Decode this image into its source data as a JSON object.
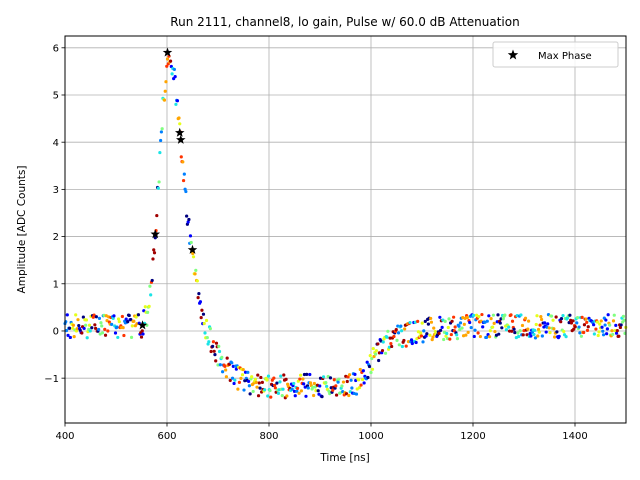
{
  "chart_data": {
    "type": "scatter",
    "title": "Run 2111, channel8, lo gain, Pulse w/ 60.0 dB Attenuation",
    "xlabel": "Time [ns]",
    "ylabel": "Amplitude [ADC Counts]",
    "xlim": [
      400,
      1500
    ],
    "ylim": [
      -1.95,
      6.25
    ],
    "xticks": [
      400,
      600,
      800,
      1000,
      1200,
      1400
    ],
    "yticks": [
      -1,
      0,
      1,
      2,
      3,
      4,
      5,
      6
    ],
    "grid": true,
    "legend": {
      "entries": [
        "Max Phase"
      ],
      "placement": "top-right"
    },
    "color_scale": [
      "#00007f",
      "#0000ff",
      "#0080ff",
      "#1ae4e6",
      "#80ff80",
      "#e6ff1a",
      "#ffa500",
      "#ff3300",
      "#a00000"
    ],
    "pulse_shape": {
      "description": "waveform samples as (time ns, amplitude ADC counts)",
      "x": [
        400,
        550,
        562,
        572,
        582,
        592,
        600,
        606,
        614,
        622,
        630,
        640,
        650,
        660,
        672,
        686,
        700,
        716,
        732,
        750,
        780,
        820,
        880,
        940,
        975,
        990,
        1010,
        1030,
        1050,
        1080,
        1120,
        1200,
        1500
      ],
      "y": [
        0.1,
        0.1,
        0.4,
        1.3,
        2.9,
        4.7,
        5.7,
        5.9,
        5.4,
        4.6,
        3.6,
        2.4,
        1.5,
        0.8,
        0.2,
        -0.2,
        -0.55,
        -0.8,
        -0.95,
        -1.05,
        -1.15,
        -1.17,
        -1.15,
        -1.15,
        -1.12,
        -0.85,
        -0.5,
        -0.25,
        -0.12,
        -0.05,
        0.05,
        0.1,
        0.1
      ],
      "noise_amplitude": 0.25,
      "sample_period_ns": 1.5
    },
    "max_phase_markers": {
      "label": "Max Phase",
      "x": [
        552,
        577,
        601,
        625,
        627,
        650
      ],
      "y": [
        0.12,
        2.05,
        5.9,
        4.2,
        4.05,
        1.72
      ]
    }
  }
}
